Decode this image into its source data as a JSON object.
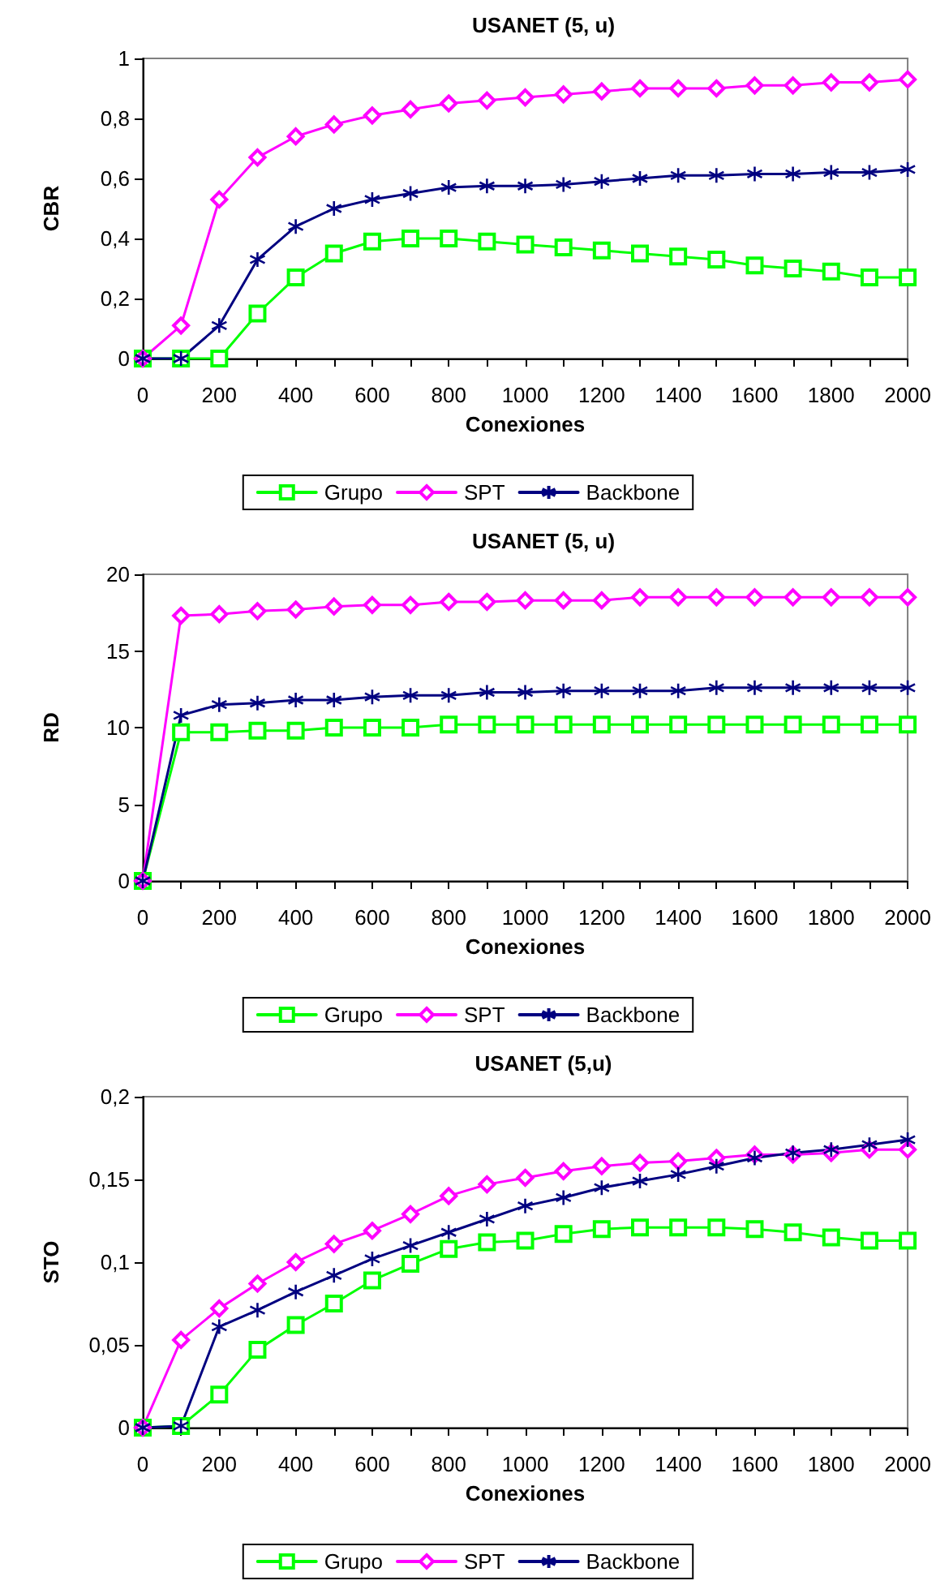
{
  "chart_data": [
    {
      "type": "line",
      "title": "USANET (5, u)",
      "xlabel": "Conexiones",
      "ylabel": "CBR",
      "legend": "bottom",
      "grid": false,
      "line_style": "solid",
      "x": [
        0,
        100,
        200,
        300,
        400,
        500,
        600,
        700,
        800,
        900,
        1000,
        1100,
        1200,
        1300,
        1400,
        1500,
        1600,
        1700,
        1800,
        1900,
        2000
      ],
      "xlim": [
        0,
        2000
      ],
      "xticks": [
        0,
        {
          "value": 100,
          "label": null
        },
        200,
        {
          "value": 300,
          "label": null
        },
        400,
        {
          "value": 500,
          "label": null
        },
        600,
        {
          "value": 700,
          "label": null
        },
        800,
        {
          "value": 900,
          "label": null
        },
        1000,
        {
          "value": 1100,
          "label": null
        },
        1200,
        {
          "value": 1300,
          "label": null
        },
        1400,
        {
          "value": 1500,
          "label": null
        },
        1600,
        {
          "value": 1700,
          "label": null
        },
        1800,
        {
          "value": 1900,
          "label": null
        },
        2000
      ],
      "ylim": [
        0,
        1
      ],
      "yticks": [
        0,
        {
          "value": 0.2,
          "label": "0,2"
        },
        {
          "value": 0.4,
          "label": "0,4"
        },
        {
          "value": 0.6,
          "label": "0,6"
        },
        {
          "value": 0.8,
          "label": "0,8"
        },
        1
      ],
      "series": [
        {
          "name": "Grupo",
          "color": "#00ff00",
          "marker": "square",
          "values": [
            0,
            0,
            0,
            0.15,
            0.27,
            0.35,
            0.39,
            0.4,
            0.4,
            0.39,
            0.38,
            0.37,
            0.36,
            0.35,
            0.34,
            0.33,
            0.31,
            0.3,
            0.29,
            0.27,
            0.27
          ]
        },
        {
          "name": "SPT",
          "color": "#ff00ff",
          "marker": "diamond",
          "values": [
            0,
            0.11,
            0.53,
            0.67,
            0.74,
            0.78,
            0.81,
            0.83,
            0.85,
            0.86,
            0.87,
            0.88,
            0.89,
            0.9,
            0.9,
            0.9,
            0.91,
            0.91,
            0.92,
            0.92,
            0.93
          ]
        },
        {
          "name": "Backbone",
          "color": "#000080",
          "marker": "cross",
          "values": [
            0,
            0,
            0.11,
            0.33,
            0.44,
            0.5,
            0.53,
            0.55,
            0.57,
            0.575,
            0.575,
            0.58,
            0.59,
            0.6,
            0.61,
            0.61,
            0.615,
            0.615,
            0.62,
            0.62,
            0.63
          ]
        }
      ]
    },
    {
      "type": "line",
      "title": "USANET (5, u)",
      "xlabel": "Conexiones",
      "ylabel": "RD",
      "legend": "bottom",
      "grid": false,
      "line_style": "solid",
      "x": [
        0,
        100,
        200,
        300,
        400,
        500,
        600,
        700,
        800,
        900,
        1000,
        1100,
        1200,
        1300,
        1400,
        1500,
        1600,
        1700,
        1800,
        1900,
        2000
      ],
      "xlim": [
        0,
        2000
      ],
      "xticks": [
        0,
        {
          "value": 100,
          "label": null
        },
        200,
        {
          "value": 300,
          "label": null
        },
        400,
        {
          "value": 500,
          "label": null
        },
        600,
        {
          "value": 700,
          "label": null
        },
        800,
        {
          "value": 900,
          "label": null
        },
        1000,
        {
          "value": 1100,
          "label": null
        },
        1200,
        {
          "value": 1300,
          "label": null
        },
        1400,
        {
          "value": 1500,
          "label": null
        },
        1600,
        {
          "value": 1700,
          "label": null
        },
        1800,
        {
          "value": 1900,
          "label": null
        },
        2000
      ],
      "ylim": [
        0,
        20
      ],
      "yticks": [
        0,
        5,
        10,
        15,
        20
      ],
      "series": [
        {
          "name": "Grupo",
          "color": "#00ff00",
          "marker": "square",
          "values": [
            0,
            9.7,
            9.7,
            9.8,
            9.8,
            10,
            10,
            10,
            10.2,
            10.2,
            10.2,
            10.2,
            10.2,
            10.2,
            10.2,
            10.2,
            10.2,
            10.2,
            10.2,
            10.2,
            10.2
          ]
        },
        {
          "name": "SPT",
          "color": "#ff00ff",
          "marker": "diamond",
          "values": [
            0,
            17.3,
            17.4,
            17.6,
            17.7,
            17.9,
            18.0,
            18.0,
            18.2,
            18.2,
            18.3,
            18.3,
            18.3,
            18.5,
            18.5,
            18.5,
            18.5,
            18.5,
            18.5,
            18.5,
            18.5
          ]
        },
        {
          "name": "Backbone",
          "color": "#000080",
          "marker": "cross",
          "values": [
            0,
            10.8,
            11.5,
            11.6,
            11.8,
            11.8,
            12.0,
            12.1,
            12.1,
            12.3,
            12.3,
            12.4,
            12.4,
            12.4,
            12.4,
            12.6,
            12.6,
            12.6,
            12.6,
            12.6,
            12.6
          ]
        }
      ]
    },
    {
      "type": "line",
      "title": "USANET (5,u)",
      "xlabel": "Conexiones",
      "ylabel": "STO",
      "legend": "bottom",
      "grid": false,
      "line_style": "solid",
      "x": [
        0,
        100,
        200,
        300,
        400,
        500,
        600,
        700,
        800,
        900,
        1000,
        1100,
        1200,
        1300,
        1400,
        1500,
        1600,
        1700,
        1800,
        1900,
        2000
      ],
      "xlim": [
        0,
        2000
      ],
      "xticks": [
        0,
        {
          "value": 100,
          "label": null
        },
        200,
        {
          "value": 300,
          "label": null
        },
        400,
        {
          "value": 500,
          "label": null
        },
        600,
        {
          "value": 700,
          "label": null
        },
        800,
        {
          "value": 900,
          "label": null
        },
        1000,
        {
          "value": 1100,
          "label": null
        },
        1200,
        {
          "value": 1300,
          "label": null
        },
        1400,
        {
          "value": 1500,
          "label": null
        },
        1600,
        {
          "value": 1700,
          "label": null
        },
        1800,
        {
          "value": 1900,
          "label": null
        },
        2000
      ],
      "ylim": [
        0,
        0.2
      ],
      "yticks": [
        0,
        {
          "value": 0.05,
          "label": "0,05"
        },
        {
          "value": 0.1,
          "label": "0,1"
        },
        {
          "value": 0.15,
          "label": "0,15"
        },
        {
          "value": 0.2,
          "label": "0,2"
        }
      ],
      "series": [
        {
          "name": "Grupo",
          "color": "#00ff00",
          "marker": "square",
          "values": [
            0,
            0.001,
            0.02,
            0.047,
            0.062,
            0.075,
            0.089,
            0.099,
            0.108,
            0.112,
            0.113,
            0.117,
            0.12,
            0.121,
            0.121,
            0.121,
            0.12,
            0.118,
            0.115,
            0.113,
            0.113
          ]
        },
        {
          "name": "SPT",
          "color": "#ff00ff",
          "marker": "diamond",
          "values": [
            0,
            0.053,
            0.072,
            0.087,
            0.1,
            0.111,
            0.119,
            0.129,
            0.14,
            0.147,
            0.151,
            0.155,
            0.158,
            0.16,
            0.161,
            0.163,
            0.165,
            0.165,
            0.166,
            0.168,
            0.168
          ]
        },
        {
          "name": "Backbone",
          "color": "#000080",
          "marker": "cross",
          "values": [
            0,
            0.001,
            0.061,
            0.071,
            0.082,
            0.092,
            0.102,
            0.11,
            0.118,
            0.126,
            0.134,
            0.139,
            0.145,
            0.149,
            0.153,
            0.158,
            0.163,
            0.166,
            0.168,
            0.171,
            0.174
          ]
        }
      ]
    }
  ]
}
